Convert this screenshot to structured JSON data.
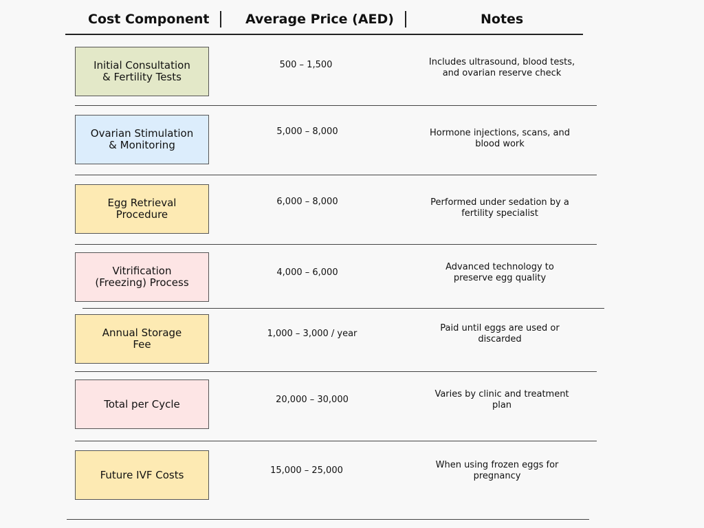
{
  "header": {
    "component": "Cost Component",
    "price": "Average Price (AED)",
    "notes": "Notes"
  },
  "rows": [
    {
      "component": "Initial Consultation\n& Fertility Tests",
      "price": "500 – 1,500",
      "notes": "Includes ultrasound, blood tests,\nand ovarian reserve check",
      "color": "#e3e8c8"
    },
    {
      "component": "Ovarian Stimulation\n& Monitoring",
      "price": "5,000 – 8,000",
      "notes": "Hormone injections, scans, and\nblood work",
      "color": "#dcedfc"
    },
    {
      "component": "Egg Retrieval\nProcedure",
      "price": "6,000 – 8,000",
      "notes": "Performed under sedation by a\nfertility specialist",
      "color": "#fdeab3"
    },
    {
      "component": "Vitrification\n(Freezing) Process",
      "price": "4,000 – 6,000",
      "notes": "Advanced technology to\npreserve egg quality",
      "color": "#fde5e5"
    },
    {
      "component": "Annual Storage\nFee",
      "price": "1,000 – 3,000 / year",
      "notes": "Paid until eggs are used or\ndiscarded",
      "color": "#fdeab3"
    },
    {
      "component": "Total per Cycle",
      "price": "20,000 – 30,000",
      "notes": "Varies by clinic and treatment\nplan",
      "color": "#fde5e5"
    },
    {
      "component": "Future IVF Costs",
      "price": "15,000 – 25,000",
      "notes": "When using frozen eggs for\npregnancy",
      "color": "#fdeab3"
    }
  ]
}
